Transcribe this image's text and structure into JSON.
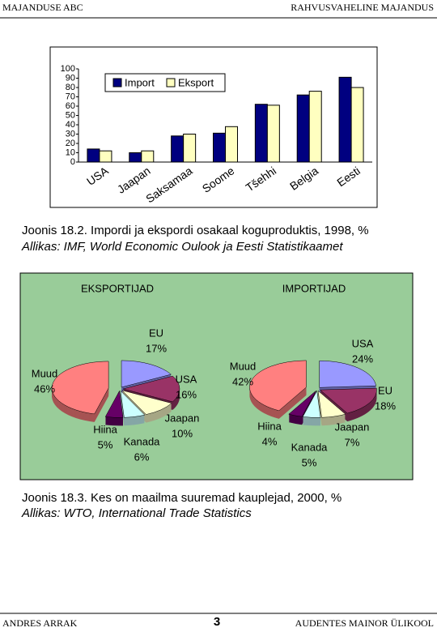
{
  "header": {
    "left": "MAJANDUSE ABC",
    "right": "RAHVUSVAHELINE MAJANDUS"
  },
  "chart_data": [
    {
      "type": "bar",
      "categories": [
        "USA",
        "Jaapan",
        "Saksamaa",
        "Soome",
        "Tšehhi",
        "Belgia",
        "Eesti"
      ],
      "series": [
        {
          "name": "Import",
          "color": "#000080",
          "values": [
            14,
            10,
            28,
            31,
            62,
            72,
            91
          ]
        },
        {
          "name": "Eksport",
          "color": "#ffffc0",
          "values": [
            12,
            12,
            30,
            38,
            61,
            76,
            80
          ]
        }
      ],
      "ylim": [
        0,
        100
      ],
      "yticks": [
        0,
        10,
        20,
        30,
        40,
        50,
        60,
        70,
        80,
        90,
        100
      ],
      "grid": false
    },
    {
      "type": "pie",
      "title": "EKSPORTIJAD",
      "categories": [
        "EU",
        "USA",
        "Jaapan",
        "Kanada",
        "Hiina",
        "Muud"
      ],
      "values": [
        17,
        16,
        10,
        6,
        5,
        46
      ],
      "value_labels": [
        "17%",
        "16%",
        "10%",
        "6%",
        "5%",
        "46%"
      ],
      "colors": [
        "#9999ff",
        "#993366",
        "#ffffcc",
        "#ccffff",
        "#660066",
        "#ff8080"
      ]
    },
    {
      "type": "pie",
      "title": "IMPORTIJAD",
      "categories": [
        "USA",
        "EU",
        "Jaapan",
        "Kanada",
        "Hiina",
        "Muud"
      ],
      "values": [
        24,
        18,
        7,
        5,
        4,
        42
      ],
      "value_labels": [
        "24%",
        "18%",
        "7%",
        "5%",
        "4%",
        "42%"
      ],
      "colors": [
        "#9999ff",
        "#993366",
        "#ffffcc",
        "#ccffff",
        "#660066",
        "#ff8080"
      ]
    }
  ],
  "captions": [
    {
      "title": "Joonis 18.2. Impordi ja ekspordi osakaal koguproduktis, 1998, %",
      "source": "Allikas: IMF, World Economic Oulook ja Eesti Statistikaamet"
    },
    {
      "title": "Joonis 18.3. Kes on maailma suuremad kauplejad, 2000, %",
      "source": "Allikas: WTO, International Trade Statistics"
    }
  ],
  "footer": {
    "left": "ANDRES ARRAK",
    "page": "3",
    "right": "AUDENTES MAINOR ÜLIKOOL"
  }
}
